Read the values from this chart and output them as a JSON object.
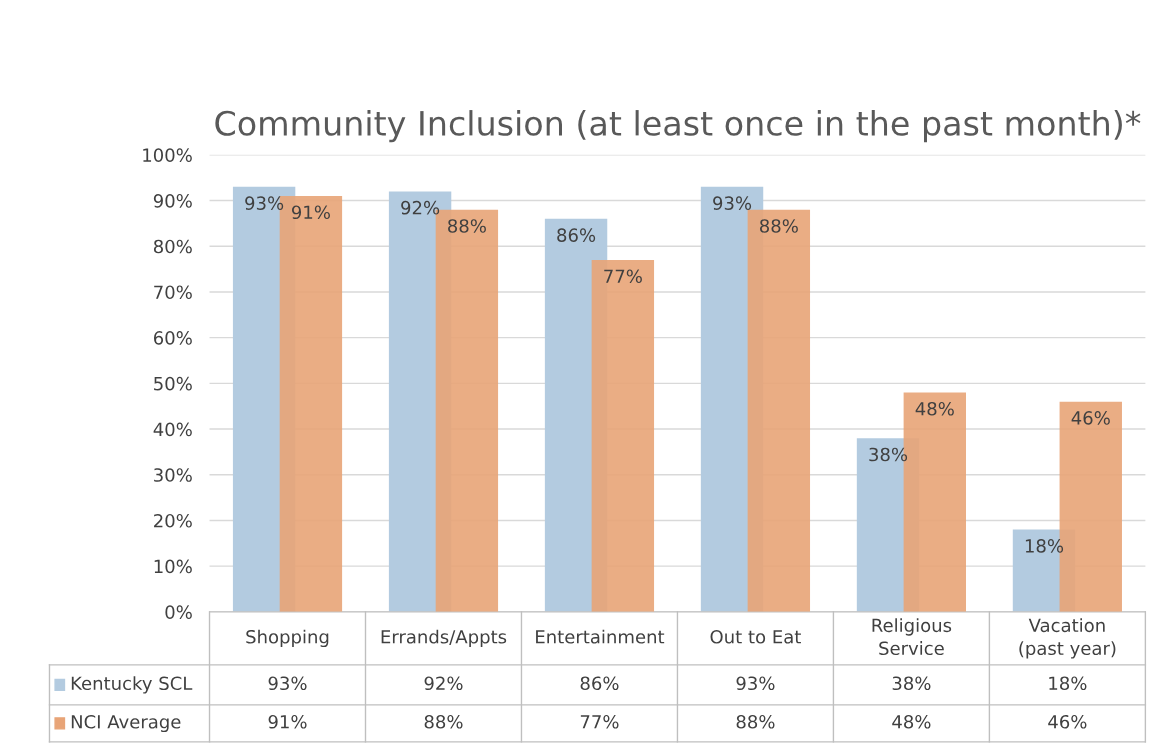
{
  "chart_data": {
    "type": "bar",
    "title": "Community Inclusion (at least once in the past month)*",
    "categories": [
      "Shopping",
      "Errands/Appts",
      "Entertainment",
      "Out to Eat",
      "Religious\nService",
      "Vacation\n(past year)"
    ],
    "series": [
      {
        "name": "Kentucky SCL",
        "color": "#b3cbe0",
        "values": [
          93,
          92,
          86,
          93,
          38,
          18
        ],
        "value_labels": [
          "93%",
          "92%",
          "86%",
          "93%",
          "38%",
          "18%"
        ]
      },
      {
        "name": "NCI Average",
        "color": "#e8a477",
        "values": [
          91,
          88,
          77,
          88,
          48,
          46
        ],
        "value_labels": [
          "91%",
          "88%",
          "77%",
          "88%",
          "48%",
          "46%"
        ]
      }
    ],
    "ylim": [
      0,
      100
    ],
    "yticks": [
      {
        "value": 0,
        "label": "0%"
      },
      {
        "value": 10,
        "label": "10%"
      },
      {
        "value": 20,
        "label": "20%"
      },
      {
        "value": 30,
        "label": "30%"
      },
      {
        "value": 40,
        "label": "40%"
      },
      {
        "value": 50,
        "label": "50%"
      },
      {
        "value": 60,
        "label": "60%"
      },
      {
        "value": 70,
        "label": "70%"
      },
      {
        "value": 80,
        "label": "80%"
      },
      {
        "value": 90,
        "label": "90%"
      },
      {
        "value": 100,
        "label": "100%"
      }
    ],
    "grid": "y",
    "legend": "bottom"
  }
}
